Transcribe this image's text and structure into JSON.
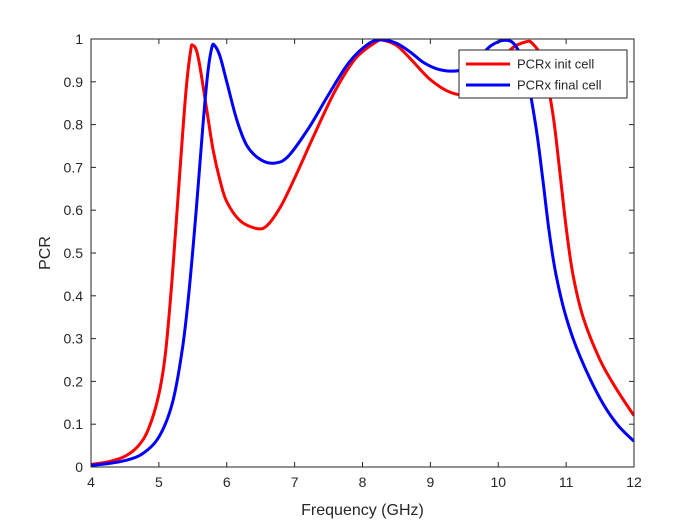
{
  "chart_data": {
    "type": "line",
    "title": "",
    "xlabel": "Frequency (GHz)",
    "ylabel": "PCR",
    "xlim": [
      4,
      12
    ],
    "ylim": [
      0,
      1
    ],
    "xticks": [
      4,
      5,
      6,
      7,
      8,
      9,
      10,
      11,
      12
    ],
    "yticks": [
      0,
      0.1,
      0.2,
      0.3,
      0.4,
      0.5,
      0.6,
      0.7,
      0.8,
      0.9,
      1
    ],
    "xtick_labels": [
      "4",
      "5",
      "6",
      "7",
      "8",
      "9",
      "10",
      "11",
      "12"
    ],
    "ytick_labels": [
      "0",
      "0.1",
      "0.2",
      "0.3",
      "0.4",
      "0.5",
      "0.6",
      "0.7",
      "0.8",
      "0.9",
      "1"
    ],
    "grid": false,
    "legend_position": "top-right",
    "series": [
      {
        "name": "PCRx init cell",
        "color": "#ff0000",
        "points": [
          [
            4.0,
            0.006
          ],
          [
            4.25,
            0.012
          ],
          [
            4.5,
            0.025
          ],
          [
            4.7,
            0.05
          ],
          [
            4.85,
            0.09
          ],
          [
            5.0,
            0.17
          ],
          [
            5.1,
            0.27
          ],
          [
            5.2,
            0.45
          ],
          [
            5.3,
            0.67
          ],
          [
            5.4,
            0.88
          ],
          [
            5.47,
            0.975
          ],
          [
            5.5,
            0.985
          ],
          [
            5.55,
            0.975
          ],
          [
            5.6,
            0.94
          ],
          [
            5.7,
            0.84
          ],
          [
            5.8,
            0.74
          ],
          [
            5.9,
            0.67
          ],
          [
            6.0,
            0.62
          ],
          [
            6.2,
            0.575
          ],
          [
            6.45,
            0.557
          ],
          [
            6.6,
            0.565
          ],
          [
            6.8,
            0.61
          ],
          [
            7.0,
            0.675
          ],
          [
            7.3,
            0.78
          ],
          [
            7.6,
            0.88
          ],
          [
            7.9,
            0.955
          ],
          [
            8.2,
            0.993
          ],
          [
            8.3,
            0.997
          ],
          [
            8.5,
            0.985
          ],
          [
            8.7,
            0.955
          ],
          [
            9.0,
            0.905
          ],
          [
            9.3,
            0.875
          ],
          [
            9.55,
            0.872
          ],
          [
            9.8,
            0.9
          ],
          [
            10.0,
            0.94
          ],
          [
            10.2,
            0.978
          ],
          [
            10.4,
            0.993
          ],
          [
            10.5,
            0.99
          ],
          [
            10.65,
            0.95
          ],
          [
            10.8,
            0.83
          ],
          [
            10.9,
            0.7
          ],
          [
            11.0,
            0.56
          ],
          [
            11.1,
            0.45
          ],
          [
            11.25,
            0.35
          ],
          [
            11.5,
            0.25
          ],
          [
            11.75,
            0.18
          ],
          [
            12.0,
            0.12
          ]
        ]
      },
      {
        "name": "PCRx final cell",
        "color": "#0000ff",
        "points": [
          [
            4.0,
            0.004
          ],
          [
            4.25,
            0.008
          ],
          [
            4.5,
            0.015
          ],
          [
            4.75,
            0.03
          ],
          [
            5.0,
            0.07
          ],
          [
            5.2,
            0.15
          ],
          [
            5.35,
            0.28
          ],
          [
            5.45,
            0.42
          ],
          [
            5.55,
            0.6
          ],
          [
            5.65,
            0.8
          ],
          [
            5.72,
            0.92
          ],
          [
            5.78,
            0.98
          ],
          [
            5.82,
            0.985
          ],
          [
            5.9,
            0.96
          ],
          [
            6.0,
            0.9
          ],
          [
            6.15,
            0.81
          ],
          [
            6.3,
            0.75
          ],
          [
            6.5,
            0.718
          ],
          [
            6.7,
            0.71
          ],
          [
            6.9,
            0.725
          ],
          [
            7.2,
            0.79
          ],
          [
            7.5,
            0.87
          ],
          [
            7.8,
            0.945
          ],
          [
            8.1,
            0.99
          ],
          [
            8.3,
            0.998
          ],
          [
            8.5,
            0.99
          ],
          [
            8.7,
            0.97
          ],
          [
            8.9,
            0.945
          ],
          [
            9.1,
            0.93
          ],
          [
            9.3,
            0.925
          ],
          [
            9.5,
            0.93
          ],
          [
            9.7,
            0.955
          ],
          [
            9.9,
            0.985
          ],
          [
            10.1,
            0.997
          ],
          [
            10.25,
            0.985
          ],
          [
            10.4,
            0.93
          ],
          [
            10.55,
            0.8
          ],
          [
            10.65,
            0.68
          ],
          [
            10.75,
            0.55
          ],
          [
            10.85,
            0.45
          ],
          [
            11.0,
            0.35
          ],
          [
            11.2,
            0.26
          ],
          [
            11.5,
            0.16
          ],
          [
            11.75,
            0.1
          ],
          [
            12.0,
            0.06
          ]
        ]
      }
    ]
  }
}
